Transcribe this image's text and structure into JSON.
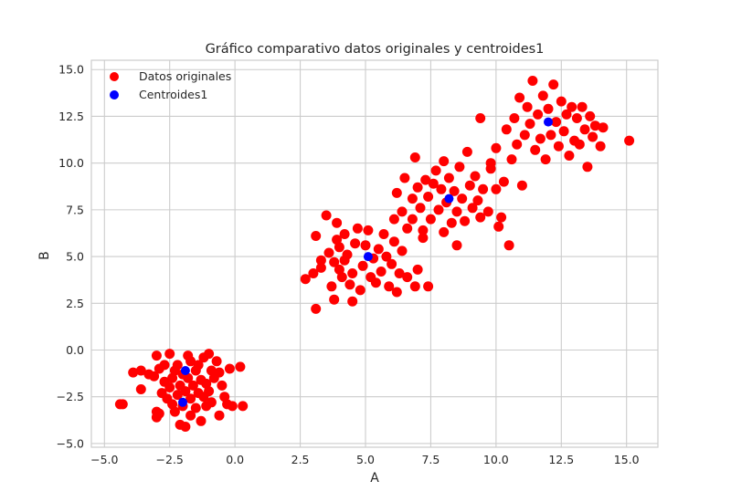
{
  "chart_data": {
    "type": "scatter",
    "title": "Gráfico comparativo datos originales y centroides1",
    "xlabel": "A",
    "ylabel": "B",
    "xlim": [
      -5.5,
      16.2
    ],
    "ylim": [
      -5.2,
      15.5
    ],
    "xticks": [
      -5.0,
      -2.5,
      0.0,
      2.5,
      5.0,
      7.5,
      10.0,
      12.5,
      15.0
    ],
    "xtick_labels": [
      "−5.0",
      "−2.5",
      "0.0",
      "2.5",
      "5.0",
      "7.5",
      "10.0",
      "12.5",
      "15.0"
    ],
    "yticks": [
      -5.0,
      -2.5,
      0.0,
      2.5,
      5.0,
      7.5,
      10.0,
      12.5,
      15.0
    ],
    "ytick_labels": [
      "−5.0",
      "−2.5",
      "0.0",
      "2.5",
      "5.0",
      "7.5",
      "10.0",
      "12.5",
      "15.0"
    ],
    "grid": true,
    "legend_position": "top-left",
    "series": [
      {
        "name": "Datos originales",
        "color": "#ff0000",
        "points": [
          [
            -4.4,
            -2.9
          ],
          [
            -4.3,
            -2.9
          ],
          [
            -3.9,
            -1.2
          ],
          [
            -3.6,
            -1.1
          ],
          [
            -3.6,
            -2.1
          ],
          [
            -3.3,
            -1.3
          ],
          [
            -3.1,
            -1.4
          ],
          [
            -3.0,
            -0.3
          ],
          [
            -3.0,
            -3.3
          ],
          [
            -3.0,
            -3.6
          ],
          [
            -2.9,
            -3.4
          ],
          [
            -2.9,
            -1.0
          ],
          [
            -2.8,
            -2.3
          ],
          [
            -2.7,
            -0.8
          ],
          [
            -2.7,
            -1.7
          ],
          [
            -2.6,
            -2.6
          ],
          [
            -2.5,
            -0.2
          ],
          [
            -2.5,
            -2.0
          ],
          [
            -2.4,
            -1.5
          ],
          [
            -2.4,
            -2.9
          ],
          [
            -2.3,
            -3.3
          ],
          [
            -2.3,
            -1.1
          ],
          [
            -2.2,
            -0.8
          ],
          [
            -2.2,
            -2.4
          ],
          [
            -2.1,
            -1.9
          ],
          [
            -2.1,
            -4.0
          ],
          [
            -2.0,
            -1.3
          ],
          [
            -2.0,
            -3.0
          ],
          [
            -1.9,
            -4.1
          ],
          [
            -1.9,
            -2.2
          ],
          [
            -1.8,
            -0.3
          ],
          [
            -1.8,
            -1.5
          ],
          [
            -1.7,
            -3.5
          ],
          [
            -1.7,
            -0.6
          ],
          [
            -1.7,
            -2.6
          ],
          [
            -1.6,
            -1.9
          ],
          [
            -1.5,
            -1.1
          ],
          [
            -1.5,
            -3.1
          ],
          [
            -1.4,
            -2.3
          ],
          [
            -1.4,
            -0.8
          ],
          [
            -1.3,
            -3.8
          ],
          [
            -1.3,
            -1.6
          ],
          [
            -1.2,
            -2.5
          ],
          [
            -1.2,
            -0.4
          ],
          [
            -1.1,
            -1.8
          ],
          [
            -1.1,
            -3.0
          ],
          [
            -1.0,
            -2.2
          ],
          [
            -1.0,
            -0.2
          ],
          [
            -0.9,
            -1.1
          ],
          [
            -0.9,
            -2.8
          ],
          [
            -0.8,
            -1.5
          ],
          [
            -0.7,
            -0.6
          ],
          [
            -0.6,
            -1.2
          ],
          [
            -0.6,
            -3.5
          ],
          [
            -0.5,
            -1.9
          ],
          [
            -0.4,
            -2.5
          ],
          [
            -0.3,
            -2.9
          ],
          [
            -0.2,
            -1.0
          ],
          [
            -0.1,
            -3.0
          ],
          [
            0.2,
            -0.9
          ],
          [
            0.3,
            -3.0
          ],
          [
            2.7,
            3.8
          ],
          [
            3.0,
            4.1
          ],
          [
            3.1,
            2.2
          ],
          [
            3.1,
            6.1
          ],
          [
            3.3,
            4.8
          ],
          [
            3.3,
            4.4
          ],
          [
            3.5,
            7.2
          ],
          [
            3.6,
            5.2
          ],
          [
            3.7,
            3.4
          ],
          [
            3.8,
            2.7
          ],
          [
            3.8,
            4.7
          ],
          [
            3.9,
            6.8
          ],
          [
            3.9,
            5.9
          ],
          [
            4.0,
            4.3
          ],
          [
            4.0,
            5.5
          ],
          [
            4.1,
            3.9
          ],
          [
            4.2,
            6.2
          ],
          [
            4.2,
            4.8
          ],
          [
            4.3,
            5.1
          ],
          [
            4.4,
            3.5
          ],
          [
            4.5,
            2.6
          ],
          [
            4.5,
            4.1
          ],
          [
            4.6,
            5.7
          ],
          [
            4.7,
            6.5
          ],
          [
            4.8,
            3.2
          ],
          [
            4.9,
            4.5
          ],
          [
            5.0,
            5.6
          ],
          [
            5.1,
            6.4
          ],
          [
            5.2,
            3.9
          ],
          [
            5.3,
            4.9
          ],
          [
            5.4,
            3.6
          ],
          [
            5.5,
            5.4
          ],
          [
            5.6,
            4.2
          ],
          [
            5.7,
            6.2
          ],
          [
            5.8,
            5.0
          ],
          [
            5.9,
            3.4
          ],
          [
            6.0,
            4.6
          ],
          [
            6.1,
            5.8
          ],
          [
            6.2,
            3.1
          ],
          [
            6.3,
            4.1
          ],
          [
            6.4,
            5.3
          ],
          [
            6.6,
            3.9
          ],
          [
            6.9,
            3.4
          ],
          [
            7.0,
            4.3
          ],
          [
            7.2,
            6.4
          ],
          [
            7.4,
            3.4
          ],
          [
            6.1,
            7.0
          ],
          [
            6.2,
            8.4
          ],
          [
            6.4,
            7.4
          ],
          [
            6.5,
            9.2
          ],
          [
            6.6,
            6.5
          ],
          [
            6.8,
            8.1
          ],
          [
            6.8,
            7.0
          ],
          [
            6.9,
            10.3
          ],
          [
            7.0,
            8.7
          ],
          [
            7.1,
            7.6
          ],
          [
            7.2,
            6.0
          ],
          [
            7.3,
            9.1
          ],
          [
            7.4,
            8.2
          ],
          [
            7.5,
            7.0
          ],
          [
            7.6,
            8.9
          ],
          [
            7.7,
            9.6
          ],
          [
            7.8,
            7.5
          ],
          [
            7.9,
            8.6
          ],
          [
            8.0,
            6.3
          ],
          [
            8.0,
            10.1
          ],
          [
            8.1,
            7.9
          ],
          [
            8.2,
            9.2
          ],
          [
            8.3,
            6.8
          ],
          [
            8.4,
            8.5
          ],
          [
            8.5,
            5.6
          ],
          [
            8.5,
            7.4
          ],
          [
            8.6,
            9.8
          ],
          [
            8.7,
            8.1
          ],
          [
            8.8,
            6.9
          ],
          [
            8.9,
            10.6
          ],
          [
            9.0,
            8.8
          ],
          [
            9.1,
            7.6
          ],
          [
            9.2,
            9.3
          ],
          [
            9.3,
            8.0
          ],
          [
            9.4,
            7.1
          ],
          [
            9.5,
            8.6
          ],
          [
            9.7,
            7.4
          ],
          [
            9.8,
            10.0
          ],
          [
            10.0,
            8.6
          ],
          [
            10.1,
            6.6
          ],
          [
            10.2,
            7.1
          ],
          [
            10.3,
            9.0
          ],
          [
            10.4,
            11.8
          ],
          [
            10.5,
            5.6
          ],
          [
            10.6,
            10.2
          ],
          [
            10.7,
            12.4
          ],
          [
            10.8,
            11.0
          ],
          [
            10.9,
            13.5
          ],
          [
            11.0,
            8.8
          ],
          [
            11.1,
            11.5
          ],
          [
            11.2,
            13.0
          ],
          [
            11.3,
            12.1
          ],
          [
            11.4,
            14.4
          ],
          [
            11.5,
            10.7
          ],
          [
            11.6,
            12.6
          ],
          [
            11.7,
            11.3
          ],
          [
            11.8,
            13.6
          ],
          [
            11.9,
            10.2
          ],
          [
            12.0,
            12.9
          ],
          [
            12.1,
            11.5
          ],
          [
            12.2,
            14.2
          ],
          [
            12.3,
            12.2
          ],
          [
            12.4,
            10.9
          ],
          [
            12.5,
            13.3
          ],
          [
            12.6,
            11.7
          ],
          [
            12.7,
            12.6
          ],
          [
            12.8,
            10.4
          ],
          [
            12.9,
            13.0
          ],
          [
            13.0,
            11.2
          ],
          [
            13.1,
            12.4
          ],
          [
            13.2,
            11.0
          ],
          [
            13.3,
            13.0
          ],
          [
            13.4,
            11.8
          ],
          [
            13.5,
            9.8
          ],
          [
            13.6,
            12.5
          ],
          [
            13.7,
            11.4
          ],
          [
            13.8,
            12.0
          ],
          [
            14.0,
            10.9
          ],
          [
            14.1,
            11.9
          ],
          [
            15.1,
            11.2
          ],
          [
            9.4,
            12.4
          ],
          [
            10.0,
            10.8
          ],
          [
            9.8,
            9.7
          ]
        ]
      },
      {
        "name": "Centroides1",
        "color": "#0000ff",
        "points": [
          [
            -1.9,
            -1.1
          ],
          [
            -2.0,
            -2.8
          ],
          [
            5.1,
            5.0
          ],
          [
            8.2,
            8.1
          ],
          [
            12.0,
            12.2
          ]
        ]
      }
    ]
  }
}
